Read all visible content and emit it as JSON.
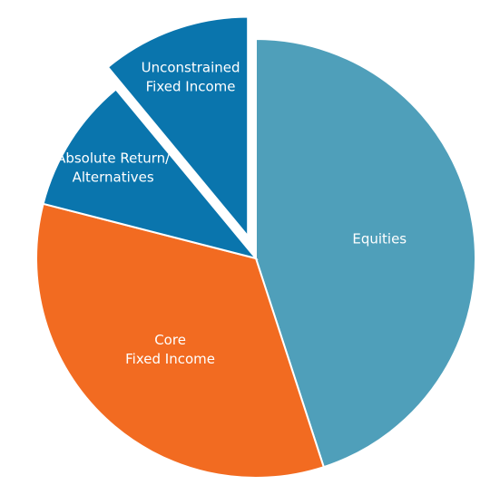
{
  "chart_data": {
    "type": "pie",
    "categories": [
      "Equities",
      "Core\nFixed Income",
      "Absolute Return/\nAlternatives",
      "Unconstrained\nFixed Income"
    ],
    "values": [
      45,
      34,
      10,
      11
    ],
    "colors": [
      "#4f9fba",
      "#f26b21",
      "#0a75ad",
      "#0a75ad"
    ],
    "explode": [
      false,
      false,
      false,
      true
    ]
  }
}
